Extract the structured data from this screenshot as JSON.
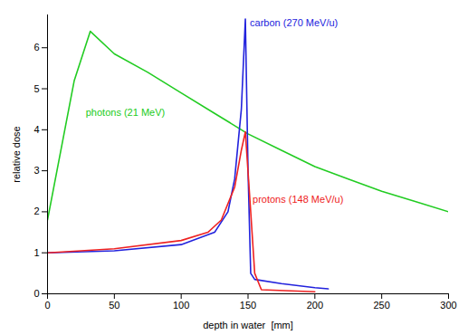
{
  "chart_data": {
    "type": "line",
    "x_label": "depth in water  [mm]",
    "y_label": "relative dose",
    "xlim": [
      0,
      300
    ],
    "xticks": [
      0,
      50,
      100,
      150,
      200,
      250,
      300
    ],
    "ylim": [
      0,
      6.8
    ],
    "yticks": [
      0,
      1,
      2,
      3,
      4,
      5,
      6
    ],
    "grid": false,
    "series": [
      {
        "name": "photons (21 MeV)",
        "color": "#22cc22",
        "x": [
          0,
          10,
          20,
          32,
          50,
          75,
          100,
          125,
          150,
          175,
          200,
          225,
          250,
          275,
          300
        ],
        "values": [
          1.8,
          3.5,
          5.2,
          6.4,
          5.85,
          5.4,
          4.9,
          4.4,
          3.9,
          3.5,
          3.1,
          2.8,
          2.5,
          2.25,
          2.0
        ]
      },
      {
        "name": "carbon (270 MeV/u)",
        "color": "#2222dd",
        "x": [
          0,
          50,
          100,
          125,
          135,
          140,
          145,
          148,
          150,
          152,
          155,
          175,
          200,
          210
        ],
        "values": [
          1.0,
          1.05,
          1.2,
          1.5,
          2.0,
          2.8,
          4.5,
          6.7,
          3.0,
          0.5,
          0.35,
          0.25,
          0.15,
          0.12
        ]
      },
      {
        "name": "protons (148 MeV/u)",
        "color": "#ee2222",
        "x": [
          0,
          50,
          100,
          120,
          130,
          140,
          145,
          148,
          152,
          155,
          160,
          200
        ],
        "values": [
          1.0,
          1.1,
          1.3,
          1.5,
          1.8,
          2.6,
          3.5,
          3.95,
          2.0,
          0.5,
          0.1,
          0.05
        ]
      }
    ]
  }
}
